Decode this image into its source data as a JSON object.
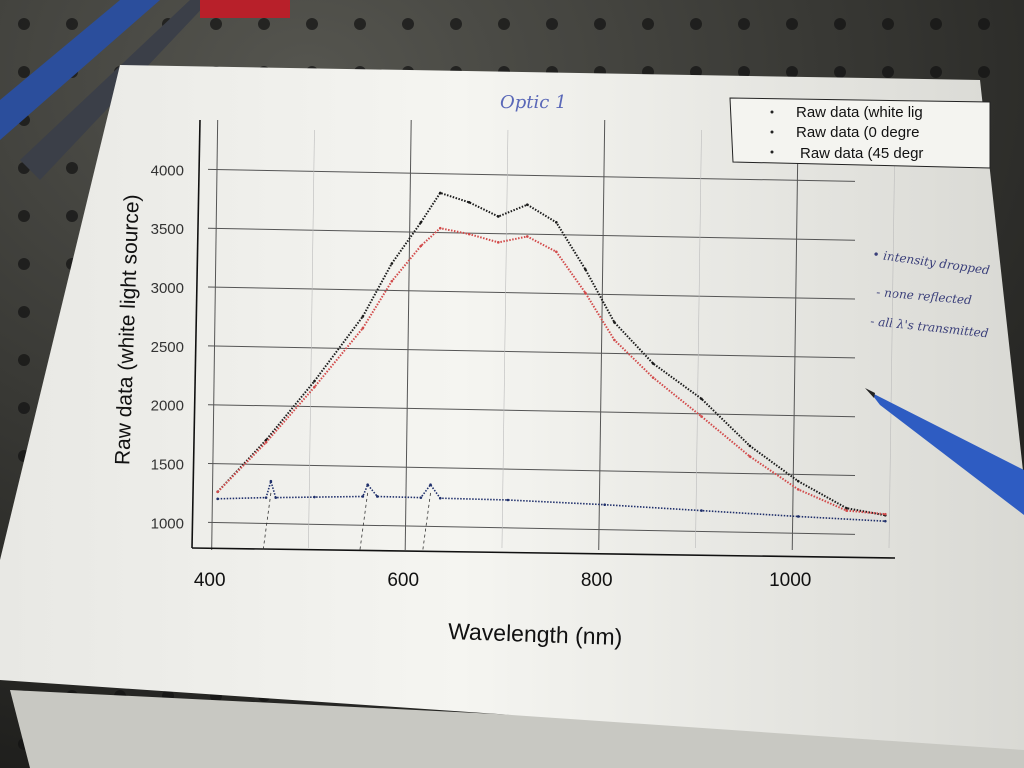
{
  "photo": {
    "table_color": "#3a3a38",
    "paper_color": "#f2f2ee",
    "handwritten_title": "Optic 1",
    "handwritten_notes": [
      "• intensity dropped",
      "- none reflected",
      "- all λ's transmitted"
    ]
  },
  "chart_data": {
    "type": "scatter",
    "title": "",
    "xlabel": "Wavelength (nm)",
    "ylabel": "Raw data (white light source)",
    "xlim": [
      390,
      1100
    ],
    "ylim": [
      850,
      4250
    ],
    "x_ticks": [
      400,
      600,
      800,
      1000
    ],
    "y_ticks": [
      1000,
      1500,
      2000,
      2500,
      3000,
      3500,
      4000
    ],
    "grid": true,
    "legend_position": "top-right",
    "legend_entries": [
      "Raw data (white lig",
      "Raw data (0 degre",
      "Raw data (45 degr"
    ],
    "series": [
      {
        "name": "Raw data (white lig",
        "color": "#1a1a1a",
        "points": [
          [
            400,
            1260
          ],
          [
            450,
            1700
          ],
          [
            500,
            2200
          ],
          [
            550,
            2750
          ],
          [
            580,
            3200
          ],
          [
            610,
            3550
          ],
          [
            630,
            3800
          ],
          [
            660,
            3720
          ],
          [
            690,
            3600
          ],
          [
            720,
            3700
          ],
          [
            750,
            3550
          ],
          [
            780,
            3150
          ],
          [
            810,
            2700
          ],
          [
            850,
            2350
          ],
          [
            900,
            2050
          ],
          [
            950,
            1650
          ],
          [
            1000,
            1350
          ],
          [
            1050,
            1120
          ],
          [
            1090,
            1060
          ]
        ]
      },
      {
        "name": "Raw data (0 degre",
        "color": "#d24a4a",
        "points": [
          [
            400,
            1260
          ],
          [
            450,
            1680
          ],
          [
            500,
            2150
          ],
          [
            550,
            2650
          ],
          [
            580,
            3050
          ],
          [
            610,
            3350
          ],
          [
            630,
            3500
          ],
          [
            660,
            3450
          ],
          [
            690,
            3380
          ],
          [
            720,
            3430
          ],
          [
            750,
            3300
          ],
          [
            780,
            2950
          ],
          [
            810,
            2550
          ],
          [
            850,
            2230
          ],
          [
            900,
            1900
          ],
          [
            950,
            1560
          ],
          [
            1000,
            1280
          ],
          [
            1050,
            1100
          ],
          [
            1090,
            1070
          ]
        ]
      },
      {
        "name": "Raw data (45 degr",
        "color": "#1f2f6b",
        "points": [
          [
            400,
            1200
          ],
          [
            450,
            1210
          ],
          [
            455,
            1350
          ],
          [
            460,
            1210
          ],
          [
            500,
            1215
          ],
          [
            550,
            1220
          ],
          [
            555,
            1320
          ],
          [
            565,
            1220
          ],
          [
            610,
            1210
          ],
          [
            620,
            1320
          ],
          [
            630,
            1205
          ],
          [
            700,
            1190
          ],
          [
            800,
            1150
          ],
          [
            900,
            1100
          ],
          [
            1000,
            1050
          ],
          [
            1090,
            1010
          ]
        ]
      }
    ]
  }
}
